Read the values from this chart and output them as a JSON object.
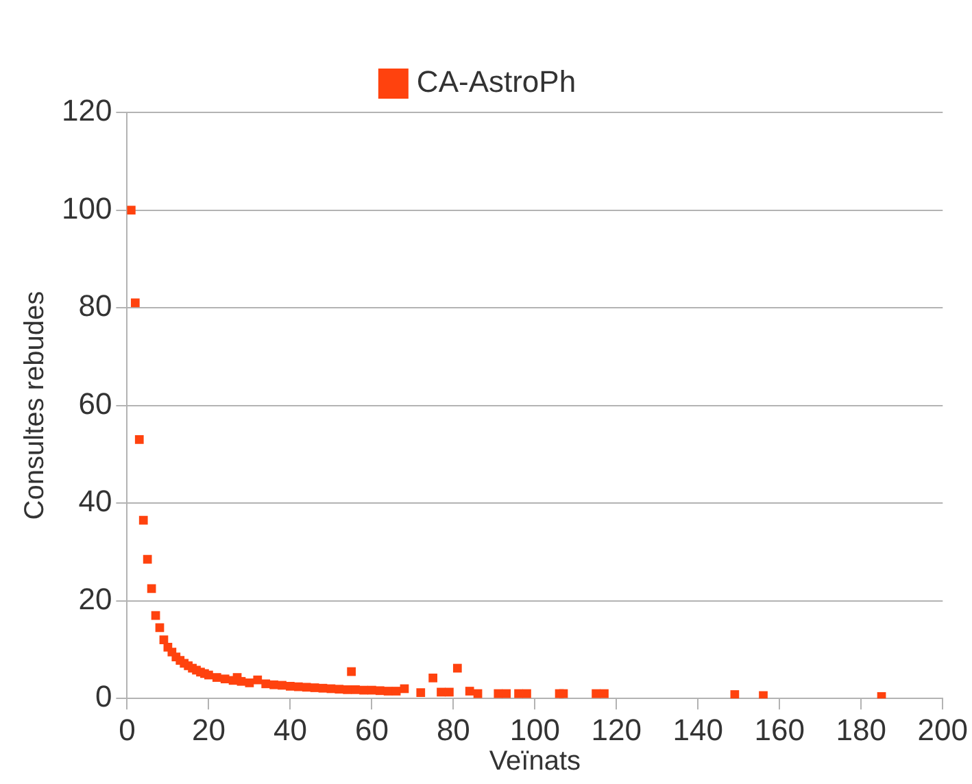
{
  "chart_data": {
    "type": "scatter",
    "xlabel": "Veïnats",
    "ylabel": "Consultes rebudes",
    "legend": "top",
    "grid": "y",
    "marker": "square",
    "xlim": [
      0,
      200
    ],
    "xticks": [
      0,
      20,
      40,
      60,
      80,
      100,
      120,
      140,
      160,
      180,
      200
    ],
    "ylim": [
      0,
      120
    ],
    "yticks": [
      0,
      20,
      40,
      60,
      80,
      100,
      120
    ],
    "series": [
      {
        "name": "CA-AstroPh",
        "color": "#ff420e",
        "x": [
          1,
          2,
          3,
          4,
          5,
          6,
          7,
          8,
          9,
          10,
          11,
          12,
          13,
          14,
          15,
          16,
          17,
          18,
          19,
          20,
          22,
          24,
          26,
          27,
          28,
          30,
          32,
          34,
          36,
          38,
          40,
          42,
          44,
          46,
          48,
          50,
          52,
          54,
          55,
          56,
          58,
          60,
          62,
          64,
          66,
          68,
          72,
          75,
          77,
          79,
          81,
          84,
          86,
          91,
          93,
          96,
          98,
          106,
          107,
          115,
          117,
          149,
          156,
          185
        ],
        "values": [
          100,
          81,
          53,
          36.5,
          28.5,
          22.5,
          17,
          14.5,
          12,
          10.5,
          9.5,
          8.5,
          7.8,
          7.2,
          6.7,
          6.2,
          5.8,
          5.4,
          5.1,
          4.8,
          4.3,
          4,
          3.7,
          4.3,
          3.5,
          3.2,
          3.8,
          3,
          2.8,
          2.7,
          2.5,
          2.4,
          2.3,
          2.2,
          2.1,
          2,
          1.9,
          1.8,
          5.5,
          1.8,
          1.7,
          1.7,
          1.6,
          1.5,
          1.5,
          2,
          1.2,
          4.2,
          1.3,
          1.3,
          6.2,
          1.5,
          1,
          1,
          1,
          1,
          1,
          1,
          1,
          1,
          1,
          0.8,
          0.6,
          0.4
        ]
      }
    ]
  }
}
